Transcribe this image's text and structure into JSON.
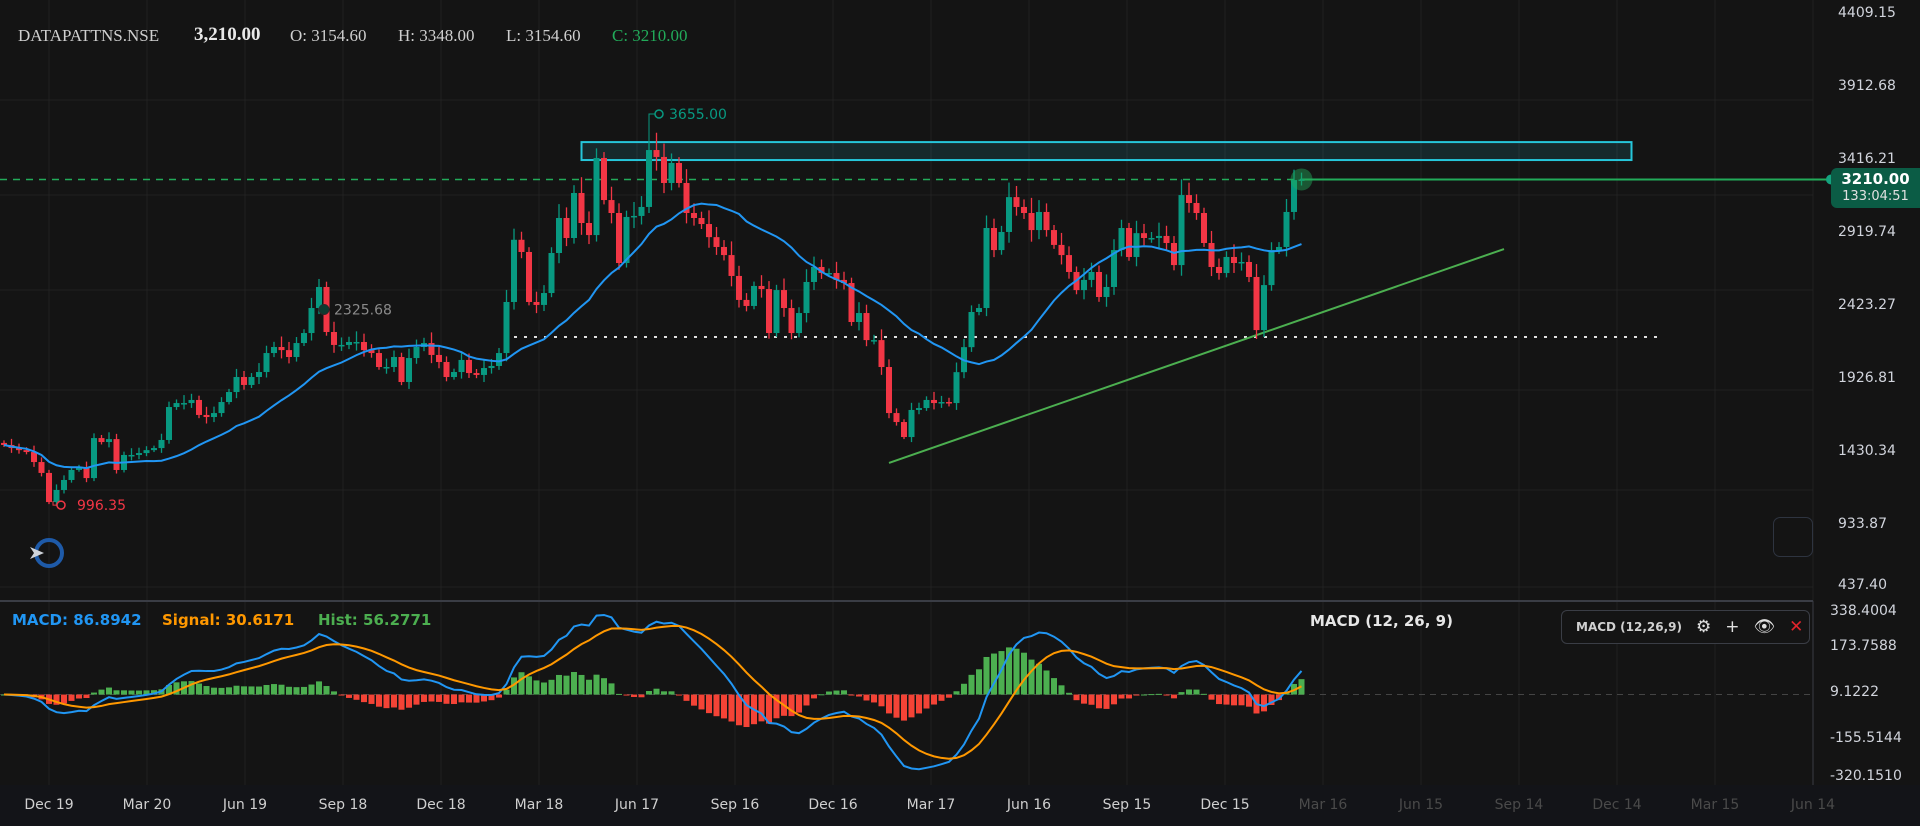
{
  "header": {
    "symbol": "DATAPATTNS.NSE",
    "last": "3,210.00",
    "open": "O: 3154.60",
    "high": "H: 3348.00",
    "low": "L: 3154.60",
    "close": "C: 3210.00"
  },
  "last_price_tag": {
    "price": "3210.00",
    "countdown": "133:04:51"
  },
  "macd_legend": {
    "macd": "MACD: 86.8942",
    "signal": "Signal: 30.6171",
    "hist": "Hist: 56.2771",
    "title": "MACD (12, 26, 9)",
    "control_label": "MACD (12,26,9)"
  },
  "colors": {
    "up": "#089981",
    "down": "#f23645",
    "ma": "#2196f3",
    "macd": "#2196f3",
    "signal": "#ff9800",
    "hist_up": "#4caf50",
    "hist_down": "#f44336",
    "zone": "#26c6da",
    "trendline": "#4caf50",
    "last_price": "#22ab5a"
  },
  "icons": {
    "settings": "gear-icon",
    "add": "plus-icon",
    "visibility": "eye-icon",
    "remove": "close-icon"
  },
  "chart_data": {
    "type": "candlestick",
    "price_axis": {
      "ticks": [
        "4409.15",
        "3912.68",
        "3416.21",
        "2919.74",
        "2423.27",
        "1926.81",
        "1430.34",
        "933.87",
        "437.40"
      ],
      "tick_values": [
        4409.15,
        3912.68,
        3416.21,
        2919.74,
        2423.27,
        1926.81,
        1430.34,
        933.87,
        437.4
      ]
    },
    "macd_axis": {
      "ticks": [
        "338.4004",
        "173.7588",
        "9.1222",
        "-155.5144",
        "-320.1510"
      ],
      "tick_values": [
        338.4004,
        173.7588,
        9.1222,
        -155.5144,
        -320.151
      ]
    },
    "time_axis": {
      "labels": [
        "Dec 19",
        "Mar 20",
        "Jun 19",
        "Sep 18",
        "Dec 18",
        "Mar 18",
        "Jun 17",
        "Sep 16",
        "Dec 16",
        "Mar 17",
        "Jun 16",
        "Sep 15",
        "Dec 15",
        "Mar 16",
        "Jun 15",
        "Sep 14",
        "Dec 14",
        "Mar 15",
        "Jun 14"
      ],
      "future_from": 13
    },
    "closes": [
      1405,
      1384,
      1370,
      1357,
      1289,
      1215,
      1017,
      1099,
      1167,
      1235,
      1255,
      1180,
      1452,
      1425,
      1445,
      1235,
      1337,
      1337,
      1350,
      1370,
      1384,
      1439,
      1663,
      1690,
      1690,
      1711,
      1609,
      1595,
      1622,
      1697,
      1765,
      1867,
      1813,
      1867,
      1901,
      2030,
      2071,
      2050,
      2003,
      2098,
      2166,
      2336,
      2479,
      2173,
      2085,
      2085,
      2105,
      2105,
      2050,
      2030,
      1935,
      1935,
      2003,
      1833,
      1996,
      2071,
      2098,
      2017,
      1969,
      1867,
      1901,
      1983,
      1894,
      1881,
      1928,
      1942,
      2030,
      2377,
      2800,
      2717,
      2377,
      2357,
      2438,
      2710,
      2948,
      2812,
      3118,
      2914,
      2832,
      3356,
      3070,
      2982,
      2642,
      2955,
      2962,
      3023,
      3410,
      3363,
      3186,
      3322,
      3186,
      2982,
      2948,
      2907,
      2818,
      2751,
      2696,
      2554,
      2391,
      2350,
      2486,
      2465,
      2166,
      2458,
      2336,
      2166,
      2302,
      2513,
      2615,
      2574,
      2574,
      2527,
      2506,
      2241,
      2302,
      2118,
      2118,
      1935,
      1622,
      1561,
      1459,
      1643,
      1656,
      1711,
      1690,
      1697,
      1690,
      1900,
      2070,
      2309,
      2336,
      2880,
      2730,
      2853,
      3090,
      3023,
      2982,
      2866,
      2989,
      2866,
      2765,
      2696,
      2581,
      2458,
      2527,
      2581,
      2411,
      2479,
      2730,
      2880,
      2683,
      2845,
      2812,
      2812,
      2826,
      2778,
      2628,
      3104,
      3050,
      2982,
      2778,
      2615,
      2574,
      2683,
      2642,
      2649,
      2547,
      2186,
      2492,
      2730,
      2751,
      2989,
      3206,
      3210
    ],
    "annotations": {
      "high_label": "3655.00",
      "high_value": 3655.0,
      "low_label": "996.35",
      "low_value": 996.35,
      "level_label": "2325.68",
      "level_value": 2325.68
    },
    "drawings": {
      "resistance_zone": {
        "price_low": 3342,
        "price_high": 3464,
        "from_bar": 77,
        "to_bar": 217
      },
      "support_line": {
        "price": 2139,
        "from_bar": 68,
        "to_bar": 221
      },
      "trendline": {
        "from": {
          "bar": 118,
          "price": 1283
        },
        "to": {
          "bar": 200,
          "price": 2737
        }
      },
      "last_price": 3210
    },
    "moving_average_period": 20,
    "macd_params": [
      12,
      26,
      9
    ],
    "grid": true
  }
}
